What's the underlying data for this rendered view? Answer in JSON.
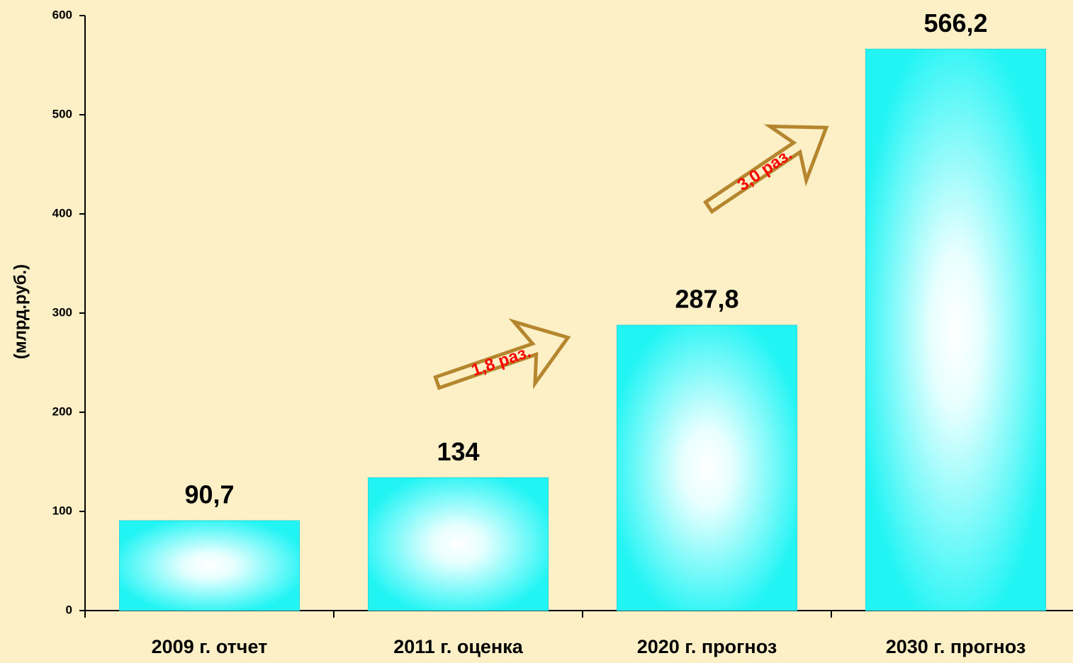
{
  "chart_data": {
    "type": "bar",
    "y_label": "(млрд.руб.)",
    "categories": [
      "2009 г. отчет",
      "2011 г. оценка",
      "2020 г. прогноз",
      "2030 г. прогноз"
    ],
    "values": [
      90.7,
      134,
      287.8,
      566.2
    ],
    "value_labels": [
      "90,7",
      "134",
      "287,8",
      "566,2"
    ],
    "color": "#00ffff",
    "ylim": [
      0,
      600
    ],
    "yticks": [
      0,
      100,
      200,
      300,
      400,
      500,
      600
    ],
    "annotations": [
      "1,8 раз.",
      "3,0 раз."
    ]
  }
}
